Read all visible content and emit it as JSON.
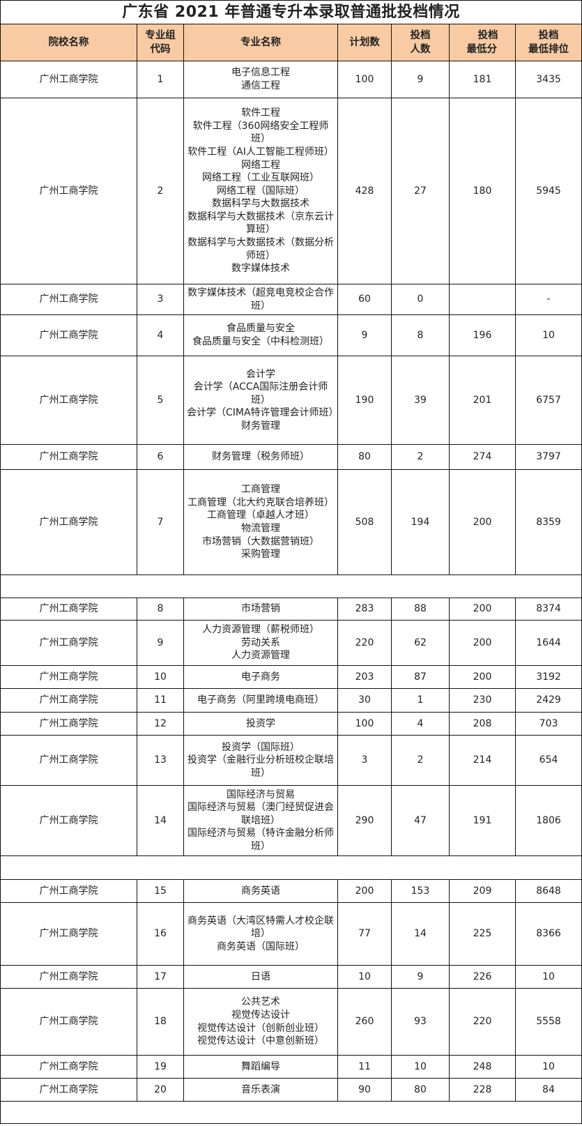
{
  "title": "广东省 2021 年普通专升本录取普通批投档情况",
  "header_color": "#f8cba5",
  "columns": [
    "院校名称",
    "专业组代码",
    "专业名称",
    "计划数",
    "投档人数",
    "投档最低分",
    "投档最低排位"
  ],
  "columns_display": [
    [
      "院校名称"
    ],
    [
      "专业组",
      "代码"
    ],
    [
      "专业名称"
    ],
    [
      "计划数"
    ],
    [
      "投档",
      "人数"
    ],
    [
      "投档",
      "最低分"
    ],
    [
      "投档",
      "最低排位"
    ]
  ],
  "rows": [
    {
      "school": "广州工商学院",
      "code": "1",
      "majors": [
        "电子信息工程",
        "通信工程"
      ],
      "plan": "100",
      "count": "9",
      "min_score": "181",
      "min_rank": "3435"
    },
    {
      "school": "广州工商学院",
      "code": "2",
      "majors": [
        "软件工程",
        "软件工程（360网络安全工程师班）",
        "软件工程（AI人工智能工程师班）",
        "网络工程",
        "网络工程（工业互联网班）",
        "网络工程（国际班）",
        "数据科学与大数据技术",
        "数据科学与大数据技术（京东云计算班）",
        "数据科学与大数据技术（数据分析师班）",
        "数字媒体技术"
      ],
      "plan": "428",
      "count": "27",
      "min_score": "180",
      "min_rank": "5945"
    },
    {
      "school": "广州工商学院",
      "code": "3",
      "majors": [
        "数字媒体技术（超竞电竞校企合作班）"
      ],
      "plan": "60",
      "count": "0",
      "min_score": "",
      "min_rank": "-"
    },
    {
      "school": "广州工商学院",
      "code": "4",
      "majors": [
        "食品质量与安全",
        "食品质量与安全（中科检测班）"
      ],
      "plan": "9",
      "count": "8",
      "min_score": "196",
      "min_rank": "10"
    },
    {
      "school": "广州工商学院",
      "code": "5",
      "majors": [
        "会计学",
        "会计学（ACCA国际注册会计师班）",
        "会计学（CIMA特许管理会计师班）",
        "财务管理"
      ],
      "plan": "190",
      "count": "39",
      "min_score": "201",
      "min_rank": "6757"
    },
    {
      "school": "广州工商学院",
      "code": "6",
      "majors": [
        "财务管理（税务师班）"
      ],
      "plan": "80",
      "count": "2",
      "min_score": "274",
      "min_rank": "3797"
    },
    {
      "school": "广州工商学院",
      "code": "7",
      "majors": [
        "工商管理",
        "工商管理（北大约克联合培养班）",
        "工商管理（卓越人才班）",
        "物流管理",
        "市场营销（大数据营销班）",
        "采购管理"
      ],
      "plan": "508",
      "count": "194",
      "min_score": "200",
      "min_rank": "8359"
    },
    null,
    {
      "school": "广州工商学院",
      "code": "8",
      "majors": [
        "市场营销"
      ],
      "plan": "283",
      "count": "88",
      "min_score": "200",
      "min_rank": "8374"
    },
    {
      "school": "广州工商学院",
      "code": "9",
      "majors": [
        "人力资源管理（薪税师班）",
        "劳动关系",
        "人力资源管理"
      ],
      "plan": "220",
      "count": "62",
      "min_score": "200",
      "min_rank": "1644"
    },
    {
      "school": "广州工商学院",
      "code": "10",
      "majors": [
        "电子商务"
      ],
      "plan": "203",
      "count": "87",
      "min_score": "200",
      "min_rank": "3192"
    },
    {
      "school": "广州工商学院",
      "code": "11",
      "majors": [
        "电子商务（阿里跨境电商班）"
      ],
      "plan": "30",
      "count": "1",
      "min_score": "230",
      "min_rank": "2429"
    },
    {
      "school": "广州工商学院",
      "code": "12",
      "majors": [
        "投资学"
      ],
      "plan": "100",
      "count": "4",
      "min_score": "208",
      "min_rank": "703"
    },
    {
      "school": "广州工商学院",
      "code": "13",
      "majors": [
        "投资学（国际班）",
        "投资学（金融行业分析班校企联培班）"
      ],
      "plan": "3",
      "count": "2",
      "min_score": "214",
      "min_rank": "654"
    },
    {
      "school": "广州工商学院",
      "code": "14",
      "majors": [
        "国际经济与贸易",
        "国际经济与贸易（澳门经贸促进会联培班）",
        "国际经济与贸易（特许金融分析师班）"
      ],
      "plan": "290",
      "count": "47",
      "min_score": "191",
      "min_rank": "1806"
    },
    null,
    {
      "school": "广州工商学院",
      "code": "15",
      "majors": [
        "商务英语"
      ],
      "plan": "200",
      "count": "153",
      "min_score": "209",
      "min_rank": "8648"
    },
    {
      "school": "广州工商学院",
      "code": "16",
      "majors": [
        "商务英语（大湾区特需人才校企联培）",
        "商务英语（国际班）"
      ],
      "plan": "77",
      "count": "14",
      "min_score": "225",
      "min_rank": "8366"
    },
    {
      "school": "广州工商学院",
      "code": "17",
      "majors": [
        "日语"
      ],
      "plan": "10",
      "count": "9",
      "min_score": "226",
      "min_rank": "10"
    },
    {
      "school": "广州工商学院",
      "code": "18",
      "majors": [
        "公共艺术",
        "视觉传达设计",
        "视觉传达设计（创新创业班）",
        "视觉传达设计（中意创新班）"
      ],
      "plan": "260",
      "count": "93",
      "min_score": "220",
      "min_rank": "5558"
    },
    {
      "school": "广州工商学院",
      "code": "19",
      "majors": [
        "舞蹈编导"
      ],
      "plan": "11",
      "count": "10",
      "min_score": "248",
      "min_rank": "10"
    },
    {
      "school": "广州工商学院",
      "code": "20",
      "majors": [
        "音乐表演"
      ],
      "plan": "90",
      "count": "80",
      "min_score": "228",
      "min_rank": "84"
    },
    null
  ]
}
